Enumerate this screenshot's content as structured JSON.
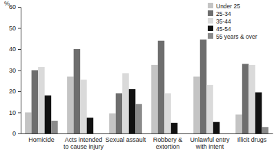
{
  "chart_data": {
    "type": "bar",
    "y_label": "%",
    "categories": [
      "Homicide",
      "Acts intended to cause injury",
      "Sexual assault",
      "Robbery & extortion",
      "Unlawful entry with intent",
      "Illicit drugs"
    ],
    "series": [
      {
        "name": "Under 25",
        "color": "#c4c4c4",
        "values": [
          10,
          27,
          9.5,
          32.5,
          27,
          9
        ]
      },
      {
        "name": "25-34",
        "color": "#6e6e6e",
        "values": [
          30,
          40,
          19,
          44,
          44.5,
          33
        ]
      },
      {
        "name": "35-44",
        "color": "#dadada",
        "values": [
          31.5,
          25.5,
          28.5,
          19,
          23,
          32.5
        ]
      },
      {
        "name": "45-54",
        "color": "#111111",
        "values": [
          18,
          7.5,
          21,
          5,
          5.5,
          19.5
        ]
      },
      {
        "name": "55 years & over",
        "color": "#8a8a8a",
        "values": [
          6,
          0,
          14,
          0,
          0,
          3
        ]
      }
    ],
    "ylim": [
      0,
      60
    ],
    "yticks": [
      0,
      10,
      20,
      30,
      40,
      50,
      60
    ],
    "grid": false,
    "legend": "top-right"
  }
}
